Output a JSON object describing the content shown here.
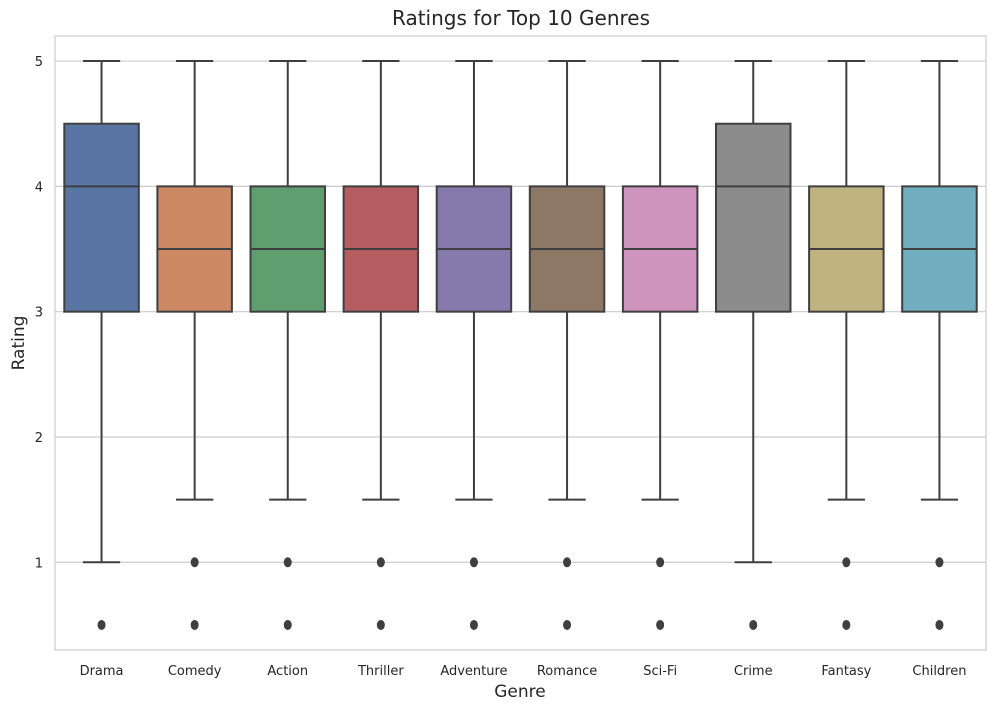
{
  "chart_data": {
    "type": "box",
    "title": "Ratings for Top 10 Genres",
    "xlabel": "Genre",
    "ylabel": "Rating",
    "ylim": [
      0.3,
      5.2
    ],
    "yticks": [
      1,
      2,
      3,
      4,
      5
    ],
    "grid": true,
    "categories": [
      "Drama",
      "Comedy",
      "Action",
      "Thriller",
      "Adventure",
      "Romance",
      "Sci-Fi",
      "Crime",
      "Fantasy",
      "Children"
    ],
    "colors": [
      "#5875a4",
      "#cc8963",
      "#5f9e6e",
      "#b55d60",
      "#857aab",
      "#8d7866",
      "#d095bf",
      "#8c8c8c",
      "#c1b37f",
      "#71aec0"
    ],
    "boxes": [
      {
        "whisker_low": 1.0,
        "q1": 3.0,
        "median": 4.0,
        "q3": 4.5,
        "whisker_high": 5.0,
        "outliers": [
          0.5
        ]
      },
      {
        "whisker_low": 1.5,
        "q1": 3.0,
        "median": 3.5,
        "q3": 4.0,
        "whisker_high": 5.0,
        "outliers": [
          0.5,
          1.0
        ]
      },
      {
        "whisker_low": 1.5,
        "q1": 3.0,
        "median": 3.5,
        "q3": 4.0,
        "whisker_high": 5.0,
        "outliers": [
          0.5,
          1.0
        ]
      },
      {
        "whisker_low": 1.5,
        "q1": 3.0,
        "median": 3.5,
        "q3": 4.0,
        "whisker_high": 5.0,
        "outliers": [
          0.5,
          1.0
        ]
      },
      {
        "whisker_low": 1.5,
        "q1": 3.0,
        "median": 3.5,
        "q3": 4.0,
        "whisker_high": 5.0,
        "outliers": [
          0.5,
          1.0
        ]
      },
      {
        "whisker_low": 1.5,
        "q1": 3.0,
        "median": 3.5,
        "q3": 4.0,
        "whisker_high": 5.0,
        "outliers": [
          0.5,
          1.0
        ]
      },
      {
        "whisker_low": 1.5,
        "q1": 3.0,
        "median": 3.5,
        "q3": 4.0,
        "whisker_high": 5.0,
        "outliers": [
          0.5,
          1.0
        ]
      },
      {
        "whisker_low": 1.0,
        "q1": 3.0,
        "median": 4.0,
        "q3": 4.5,
        "whisker_high": 5.0,
        "outliers": [
          0.5
        ]
      },
      {
        "whisker_low": 1.5,
        "q1": 3.0,
        "median": 3.5,
        "q3": 4.0,
        "whisker_high": 5.0,
        "outliers": [
          0.5,
          1.0
        ]
      },
      {
        "whisker_low": 1.5,
        "q1": 3.0,
        "median": 3.5,
        "q3": 4.0,
        "whisker_high": 5.0,
        "outliers": [
          0.5,
          1.0
        ]
      }
    ]
  }
}
